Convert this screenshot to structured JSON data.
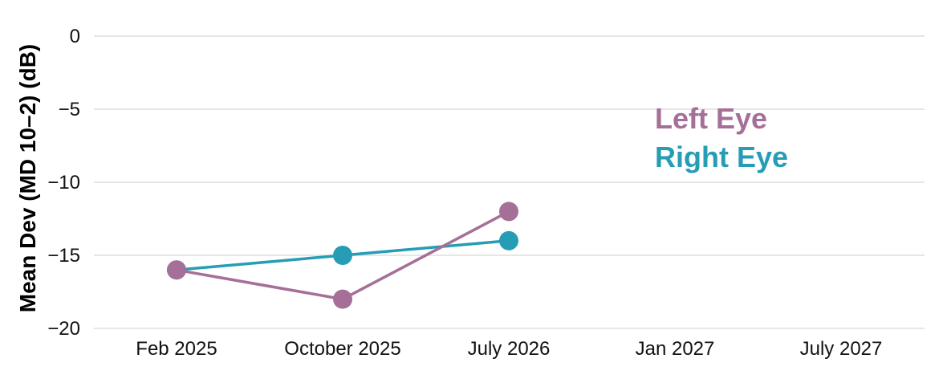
{
  "chart_data": {
    "type": "line",
    "title": "",
    "xlabel": "",
    "ylabel": "Mean Dev (MD 10–2) (dB)",
    "x_ticks": [
      "Feb 2025",
      "October 2025",
      "July 2026",
      "Jan 2027",
      "July 2027"
    ],
    "y_ticks": [
      "0",
      "−5",
      "−10",
      "−15",
      "−20"
    ],
    "y_tick_values": [
      0,
      -5,
      -10,
      -15,
      -20
    ],
    "ylim": [
      -20,
      0
    ],
    "grid": "horizontal",
    "legend_position": "upper-right",
    "series": [
      {
        "name": "Left Eye",
        "color": "#A56F97",
        "x": [
          "Feb 2025",
          "October 2025",
          "July 2026"
        ],
        "values": [
          -16,
          -18,
          -12
        ]
      },
      {
        "name": "Right Eye",
        "color": "#269CB5",
        "x": [
          "Feb 2025",
          "October 2025",
          "July 2026"
        ],
        "values": [
          -16,
          -15,
          -14
        ]
      }
    ]
  }
}
